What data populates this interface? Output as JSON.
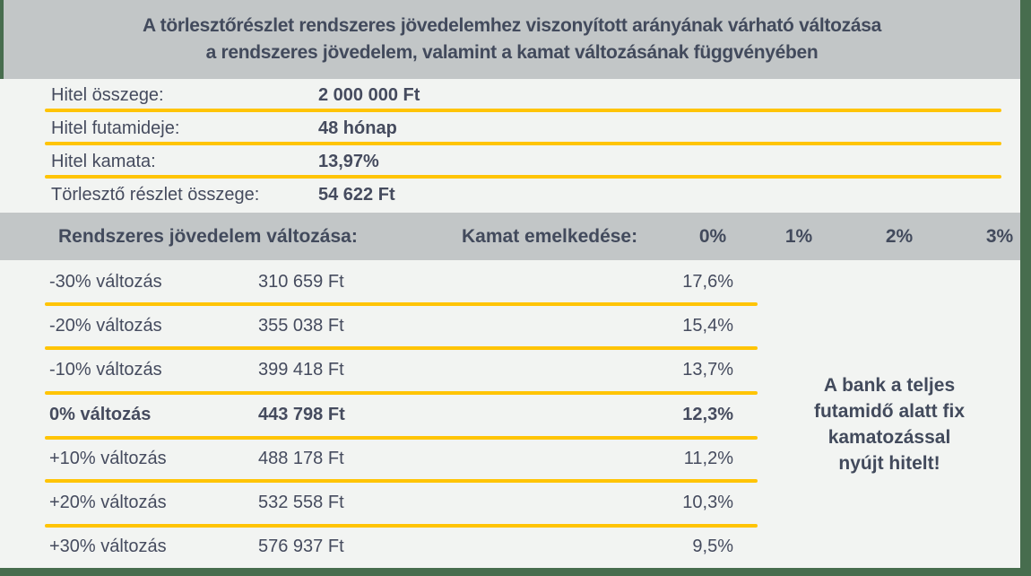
{
  "colors": {
    "frame_green": "#476d4e",
    "band_gray": "#c2c6c7",
    "background": "#f2f4f2",
    "accent_yellow": "#ffc405",
    "text_dark": "#454b5e"
  },
  "title": {
    "line1": "A törlesztőrészlet rendszeres jövedelemhez viszonyított arányának várható változása",
    "line2": "a rendszeres jövedelem, valamint a kamat változásának függvényében"
  },
  "loan_info": {
    "rows": [
      {
        "label": "Hitel összege:",
        "value": "2 000 000 Ft"
      },
      {
        "label": "Hitel futamideje:",
        "value": "48 hónap"
      },
      {
        "label": "Hitel kamata:",
        "value": "13,97%"
      },
      {
        "label": "Törlesztő részlet összege:",
        "value": "54 622 Ft"
      }
    ]
  },
  "table": {
    "header": {
      "income_label": "Rendszeres jövedelem változása:",
      "rate_label": "Kamat emelkedése:",
      "rate_columns": [
        "0%",
        "1%",
        "2%",
        "3%"
      ]
    },
    "rows": [
      {
        "change": "-30% változás",
        "amount": "310 659 Ft",
        "ratio": "17,6%"
      },
      {
        "change": "-20% változás",
        "amount": "355 038 Ft",
        "ratio": "15,4%"
      },
      {
        "change": "-10% változás",
        "amount": "399 418 Ft",
        "ratio": "13,7%"
      },
      {
        "change": "0% változás",
        "amount": "443 798 Ft",
        "ratio": "12,3%"
      },
      {
        "change": "+10% változás",
        "amount": "488 178 Ft",
        "ratio": "11,2%"
      },
      {
        "change": "+20% változás",
        "amount": "532 558 Ft",
        "ratio": "10,3%"
      },
      {
        "change": "+30% változás",
        "amount": "576 937 Ft",
        "ratio": "9,5%"
      }
    ]
  },
  "note": {
    "lines": [
      "A bank a teljes",
      "futamidő alatt fix",
      "kamatozással",
      "nyújt hitelt!"
    ]
  }
}
